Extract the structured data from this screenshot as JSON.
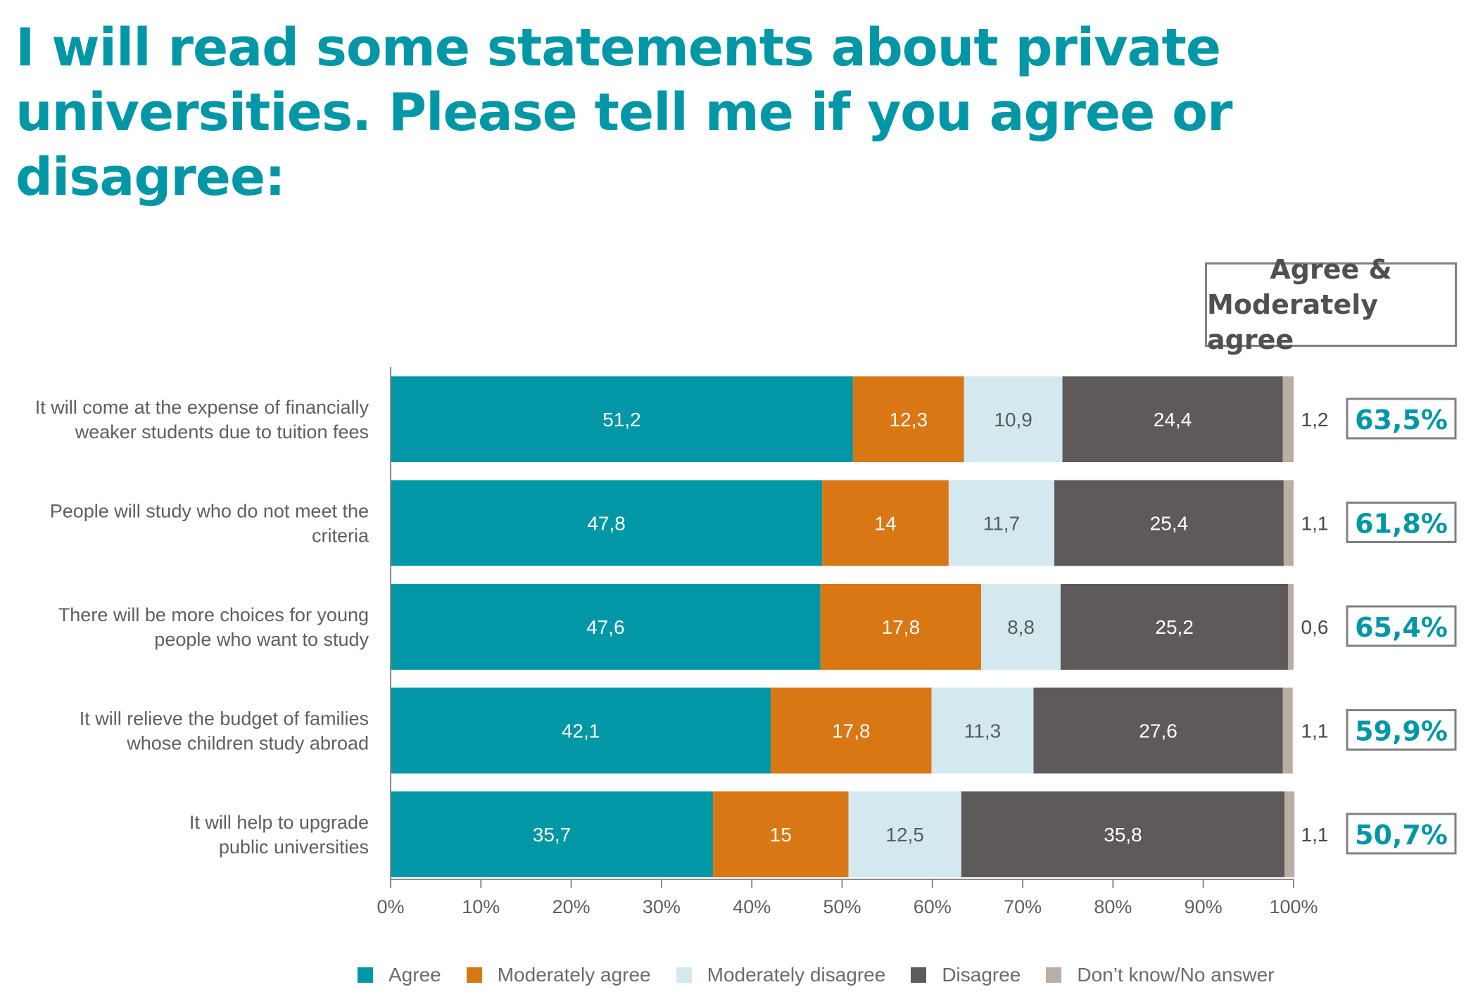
{
  "title": {
    "line1": "I will read some statements about private",
    "line2": "universities. Please tell me if you agree or disagree:"
  },
  "summary_header": {
    "line1": "Agree &",
    "line2": "Moderately agree"
  },
  "colors": {
    "agree": "#0297a6",
    "moderately_agree": "#d97714",
    "moderately_disagree": "#d3e9ef",
    "disagree": "#5e5a59",
    "dont_know": "#b9aea4",
    "title": "#0297a6",
    "summary_border": "#808080"
  },
  "chart_data": {
    "type": "bar",
    "orientation": "horizontal",
    "stacked": true,
    "categories": [
      "It will come at the expense of financially weaker students due to tuition fees",
      "People will study who do not meet the criteria",
      "There will be more choices for young people who want to study",
      "It will relieve the budget of families whose children study abroad",
      "It will help to upgrade public universities"
    ],
    "category_lines": [
      [
        "It will come at the expense of financially",
        "weaker students due to tuition fees"
      ],
      [
        "People will study who do not meet the",
        "criteria"
      ],
      [
        "There will be more choices for young",
        "people who want to study"
      ],
      [
        "It will relieve the budget of families",
        "whose children study abroad"
      ],
      [
        "It will help to upgrade",
        "public universities"
      ]
    ],
    "series": [
      {
        "name": "Agree",
        "values": [
          51.2,
          47.8,
          47.6,
          42.1,
          35.7
        ],
        "labels": [
          "51,2",
          "47,8",
          "47,6",
          "42,1",
          "35,7"
        ]
      },
      {
        "name": "Moderately agree",
        "values": [
          12.3,
          14,
          17.8,
          17.8,
          15
        ],
        "labels": [
          "12,3",
          "14",
          "17,8",
          "17,8",
          "15"
        ]
      },
      {
        "name": "Moderately disagree",
        "values": [
          10.9,
          11.7,
          8.8,
          11.3,
          12.5
        ],
        "labels": [
          "10,9",
          "11,7",
          "8,8",
          "11,3",
          "12,5"
        ]
      },
      {
        "name": "Disagree",
        "values": [
          24.4,
          25.4,
          25.2,
          27.6,
          35.8
        ],
        "labels": [
          "24,4",
          "25,4",
          "25,2",
          "27,6",
          "35,8"
        ]
      },
      {
        "name": "Don’t know/No answer",
        "values": [
          1.2,
          1.1,
          0.6,
          1.1,
          1.1
        ],
        "labels": [
          "1,2",
          "1,1",
          "0,6",
          "1,1",
          "1,1"
        ]
      }
    ],
    "agree_and_moderately_agree": [
      "63,5%",
      "61,8%",
      "65,4%",
      "59,9%",
      "50,7%"
    ],
    "x_ticks": [
      "0%",
      "10%",
      "20%",
      "30%",
      "40%",
      "50%",
      "60%",
      "70%",
      "80%",
      "90%",
      "100%"
    ],
    "xlim": [
      0,
      100
    ],
    "grid": false,
    "legend_position": "bottom"
  }
}
